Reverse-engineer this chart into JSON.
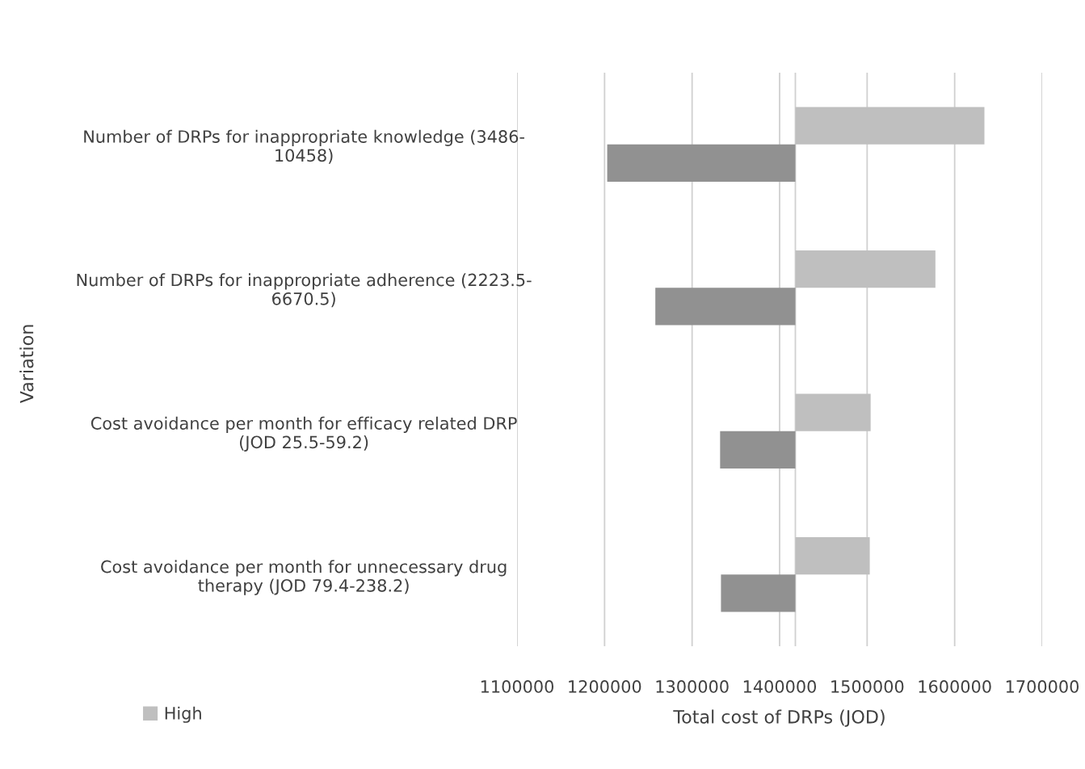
{
  "chart_data": {
    "type": "bar",
    "orientation": "horizontal",
    "xlabel": "Total cost of DRPs (JOD)",
    "ylabel": "Variation",
    "categories": [
      "Number of DRPs for inappropriate knowledge (3486-\n10458)",
      "Number of DRPs for inappropriate adherence (2223.5-\n6670.5)",
      "Cost avoidance per month for efficacy related DRP\n(JOD 25.5-59.2)",
      "Cost avoidance per month for unnecessary drug\ntherapy (JOD 79.4-238.2)"
    ],
    "series": [
      {
        "name": "High",
        "color": "#bfbfbf",
        "base": [
          1418000,
          1418000,
          1418000,
          1418000
        ],
        "values": [
          216000,
          160000,
          86000,
          85000
        ]
      },
      {
        "color": "#919191",
        "base": [
          1418000,
          1418000,
          1418000,
          1418000
        ],
        "values": [
          -215000,
          -160000,
          -86000,
          -85000
        ]
      }
    ],
    "xlim": [
      1100000,
      1700000
    ],
    "xticks": [
      1100000,
      1200000,
      1300000,
      1400000,
      1500000,
      1600000,
      1700000
    ],
    "ref_lines": [
      {
        "axis": "x",
        "value": 1418000,
        "color": "#d0d0d0"
      }
    ],
    "grid": "x",
    "legend": "bottom left"
  }
}
